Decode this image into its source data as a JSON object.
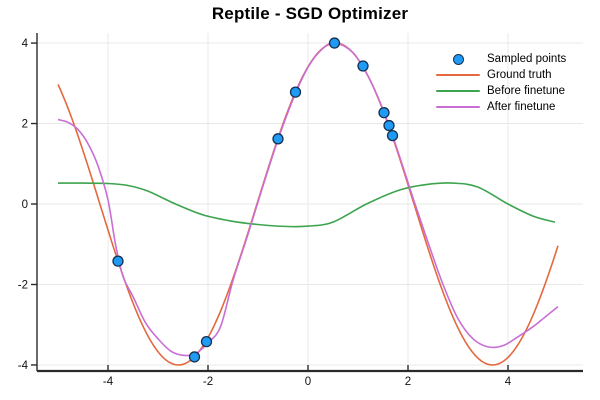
{
  "title": "Reptile - SGD Optimizer",
  "chart_data": {
    "type": "line+scatter",
    "title": "Reptile - SGD Optimizer",
    "xlim": [
      -5.42,
      5.5
    ],
    "ylim": [
      -4.15,
      4.25
    ],
    "x_ticks": [
      -4,
      -2,
      0,
      2,
      4
    ],
    "y_ticks": [
      -4,
      -2,
      0,
      2,
      4
    ],
    "x_tick_labels": [
      "-4",
      "-2",
      "0",
      "2",
      "4"
    ],
    "y_tick_labels": [
      "-4",
      "-2",
      "0",
      "2",
      "4"
    ],
    "grid": true,
    "legend_position": "top-right",
    "colors": {
      "grid": "#e8e8e8",
      "axis": "#2a2a2a",
      "tick_label": "#111111",
      "background": "#ffffff"
    },
    "series": [
      {
        "name": "Sampled points",
        "type": "scatter",
        "color": "#1f9bf5",
        "edge_color": "#17314f",
        "marker_radius": 5,
        "points": [
          [
            -3.8,
            -1.42
          ],
          [
            -2.27,
            -3.8
          ],
          [
            -2.03,
            -3.42
          ],
          [
            -0.6,
            1.62
          ],
          [
            -0.25,
            2.78
          ],
          [
            0.53,
            4.0
          ],
          [
            1.1,
            3.43
          ],
          [
            1.52,
            2.27
          ],
          [
            1.62,
            1.95
          ],
          [
            1.69,
            1.7
          ]
        ]
      },
      {
        "name": "Ground truth",
        "type": "line",
        "color": "#e3693f",
        "function": "y = 4*cos(x - 0.55)",
        "amplitude": 4,
        "phase": 0.55,
        "x_range": [
          -5,
          5
        ]
      },
      {
        "name": "Before finetune",
        "type": "line",
        "color": "#3da44e",
        "points": [
          [
            -5,
            0.52
          ],
          [
            -4.5,
            0.52
          ],
          [
            -4,
            0.51
          ],
          [
            -3.6,
            0.46
          ],
          [
            -3.2,
            0.32
          ],
          [
            -2.65,
            0
          ],
          [
            -2.1,
            -0.27
          ],
          [
            -1.55,
            -0.42
          ],
          [
            -1,
            -0.51
          ],
          [
            -0.4,
            -0.56
          ],
          [
            0,
            -0.55
          ],
          [
            0.5,
            -0.45
          ],
          [
            1.17,
            0
          ],
          [
            1.84,
            0.35
          ],
          [
            2.4,
            0.49
          ],
          [
            2.9,
            0.52
          ],
          [
            3.4,
            0.42
          ],
          [
            4,
            0
          ],
          [
            4.5,
            -0.3
          ],
          [
            4.94,
            -0.45
          ]
        ]
      },
      {
        "name": "After finetune",
        "type": "line",
        "color": "#c96ed4",
        "points": [
          [
            -5,
            2.1
          ],
          [
            -4.8,
            2.03
          ],
          [
            -4.6,
            1.85
          ],
          [
            -4.4,
            1.5
          ],
          [
            -4.2,
            0.95
          ],
          [
            -4.0,
            0.1
          ],
          [
            -3.85,
            -1.0
          ],
          [
            -3.7,
            -1.8
          ],
          [
            -3.5,
            -2.3
          ],
          [
            -3.25,
            -2.95
          ],
          [
            -3.0,
            -3.35
          ],
          [
            -2.75,
            -3.65
          ],
          [
            -2.5,
            -3.76
          ],
          [
            -2.25,
            -3.72
          ],
          [
            -2.0,
            -3.45
          ],
          [
            -1.75,
            -3.05
          ],
          [
            -1.5,
            -1.9
          ],
          [
            -1.2,
            -0.75
          ],
          [
            -0.9,
            0.45
          ],
          [
            -0.6,
            1.6
          ],
          [
            -0.3,
            2.6
          ],
          [
            0,
            3.4
          ],
          [
            0.3,
            3.87
          ],
          [
            0.55,
            4.0
          ],
          [
            0.9,
            3.76
          ],
          [
            1.2,
            3.18
          ],
          [
            1.5,
            2.35
          ],
          [
            1.8,
            1.3
          ],
          [
            2.1,
            0.15
          ],
          [
            2.4,
            -0.95
          ],
          [
            2.7,
            -2.0
          ],
          [
            3.0,
            -2.85
          ],
          [
            3.3,
            -3.35
          ],
          [
            3.6,
            -3.55
          ],
          [
            3.9,
            -3.52
          ],
          [
            4.2,
            -3.3
          ],
          [
            4.5,
            -3.05
          ],
          [
            4.75,
            -2.8
          ],
          [
            5,
            -2.55
          ]
        ]
      }
    ]
  }
}
